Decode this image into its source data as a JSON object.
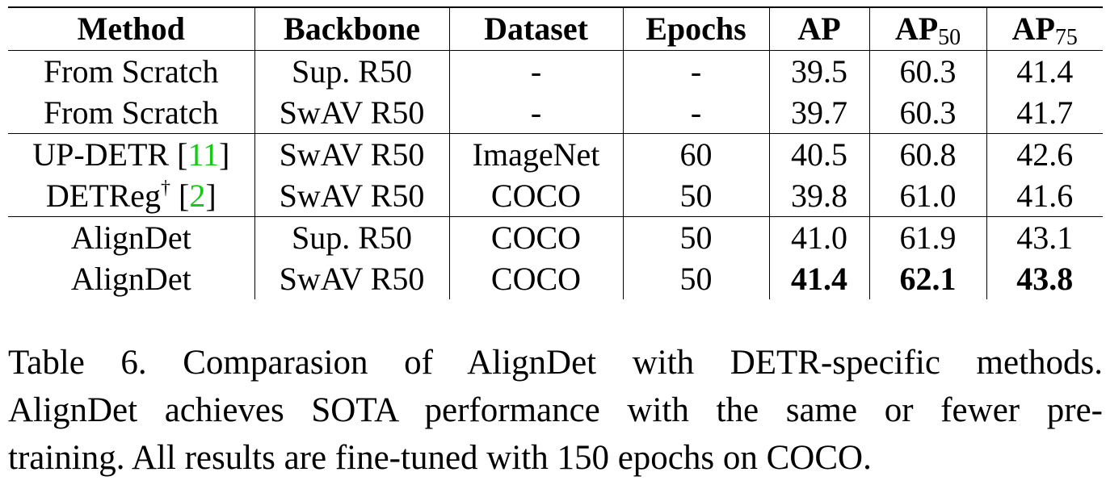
{
  "table": {
    "headers": {
      "method": "Method",
      "backbone": "Backbone",
      "dataset": "Dataset",
      "epochs": "Epochs",
      "ap": "AP",
      "ap50_main": "AP",
      "ap50_sub": "50",
      "ap75_main": "AP",
      "ap75_sub": "75"
    },
    "rows": [
      {
        "method": "From Scratch",
        "backbone": "Sup. R50",
        "dataset": "-",
        "epochs": "-",
        "ap": "39.5",
        "ap50": "60.3",
        "ap75": "41.4"
      },
      {
        "method": "From Scratch",
        "backbone": "SwAV R50",
        "dataset": "-",
        "epochs": "-",
        "ap": "39.7",
        "ap50": "60.3",
        "ap75": "41.7"
      },
      {
        "method": "UP-DETR",
        "cite": "11",
        "backbone": "SwAV R50",
        "dataset": "ImageNet",
        "epochs": "60",
        "ap": "40.5",
        "ap50": "60.8",
        "ap75": "42.6"
      },
      {
        "method": "DETReg",
        "mark": "†",
        "cite": "2",
        "backbone": "SwAV R50",
        "dataset": "COCO",
        "epochs": "50",
        "ap": "39.8",
        "ap50": "61.0",
        "ap75": "41.6"
      },
      {
        "method": "AlignDet",
        "backbone": "Sup. R50",
        "dataset": "COCO",
        "epochs": "50",
        "ap": "41.0",
        "ap50": "61.9",
        "ap75": "43.1"
      },
      {
        "method": "AlignDet",
        "backbone": "SwAV R50",
        "dataset": "COCO",
        "epochs": "50",
        "ap": "41.4",
        "ap50": "62.1",
        "ap75": "43.8"
      }
    ],
    "bold_row_index": 5,
    "cite_color": "#17c917"
  },
  "caption": {
    "line1": "Table 6. Comparasion of AlignDet with DETR-specific methods.",
    "line2": "AlignDet achieves SOTA performance with the same or fewer pre-",
    "line3": "training. All results are fine-tuned with 150 epochs on COCO."
  }
}
